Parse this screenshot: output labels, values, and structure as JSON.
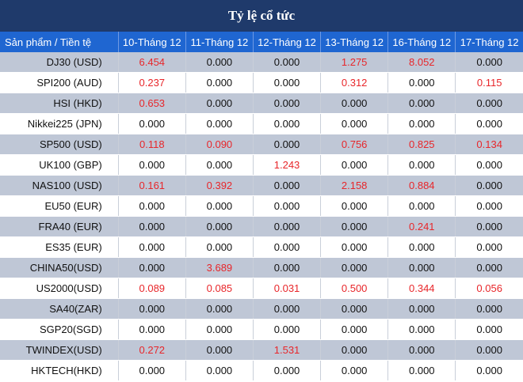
{
  "title": "Tỷ lệ cổ tức",
  "header": [
    "Sản phẩm / Tiền tệ",
    "10-Tháng 12",
    "11-Tháng 12",
    "12-Tháng 12",
    "13-Tháng 12",
    "16-Tháng 12",
    "17-Tháng 12"
  ],
  "colors": {
    "title_bg": "#1f3a6b",
    "header_bg": "#1f66d1",
    "odd_row": "#bfc7d6",
    "nonzero_text": "#e8262a"
  },
  "rows": [
    {
      "product": "DJ30 (USD)",
      "values": [
        "6.454",
        "0.000",
        "0.000",
        "1.275",
        "8.052",
        "0.000"
      ]
    },
    {
      "product": "SPI200 (AUD)",
      "values": [
        "0.237",
        "0.000",
        "0.000",
        "0.312",
        "0.000",
        "0.115"
      ]
    },
    {
      "product": "HSI (HKD)",
      "values": [
        "0.653",
        "0.000",
        "0.000",
        "0.000",
        "0.000",
        "0.000"
      ]
    },
    {
      "product": "Nikkei225 (JPN)",
      "values": [
        "0.000",
        "0.000",
        "0.000",
        "0.000",
        "0.000",
        "0.000"
      ]
    },
    {
      "product": "SP500 (USD)",
      "values": [
        "0.118",
        "0.090",
        "0.000",
        "0.756",
        "0.825",
        "0.134"
      ]
    },
    {
      "product": "UK100 (GBP)",
      "values": [
        "0.000",
        "0.000",
        "1.243",
        "0.000",
        "0.000",
        "0.000"
      ]
    },
    {
      "product": "NAS100 (USD)",
      "values": [
        "0.161",
        "0.392",
        "0.000",
        "2.158",
        "0.884",
        "0.000"
      ]
    },
    {
      "product": "EU50 (EUR)",
      "values": [
        "0.000",
        "0.000",
        "0.000",
        "0.000",
        "0.000",
        "0.000"
      ]
    },
    {
      "product": "FRA40 (EUR)",
      "values": [
        "0.000",
        "0.000",
        "0.000",
        "0.000",
        "0.241",
        "0.000"
      ]
    },
    {
      "product": "ES35 (EUR)",
      "values": [
        "0.000",
        "0.000",
        "0.000",
        "0.000",
        "0.000",
        "0.000"
      ]
    },
    {
      "product": "CHINA50(USD)",
      "values": [
        "0.000",
        "3.689",
        "0.000",
        "0.000",
        "0.000",
        "0.000"
      ]
    },
    {
      "product": "US2000(USD)",
      "values": [
        "0.089",
        "0.085",
        "0.031",
        "0.500",
        "0.344",
        "0.056"
      ]
    },
    {
      "product": "SA40(ZAR)",
      "values": [
        "0.000",
        "0.000",
        "0.000",
        "0.000",
        "0.000",
        "0.000"
      ]
    },
    {
      "product": "SGP20(SGD)",
      "values": [
        "0.000",
        "0.000",
        "0.000",
        "0.000",
        "0.000",
        "0.000"
      ]
    },
    {
      "product": "TWINDEX(USD)",
      "values": [
        "0.272",
        "0.000",
        "1.531",
        "0.000",
        "0.000",
        "0.000"
      ]
    },
    {
      "product": "HKTECH(HKD)",
      "values": [
        "0.000",
        "0.000",
        "0.000",
        "0.000",
        "0.000",
        "0.000"
      ]
    }
  ]
}
